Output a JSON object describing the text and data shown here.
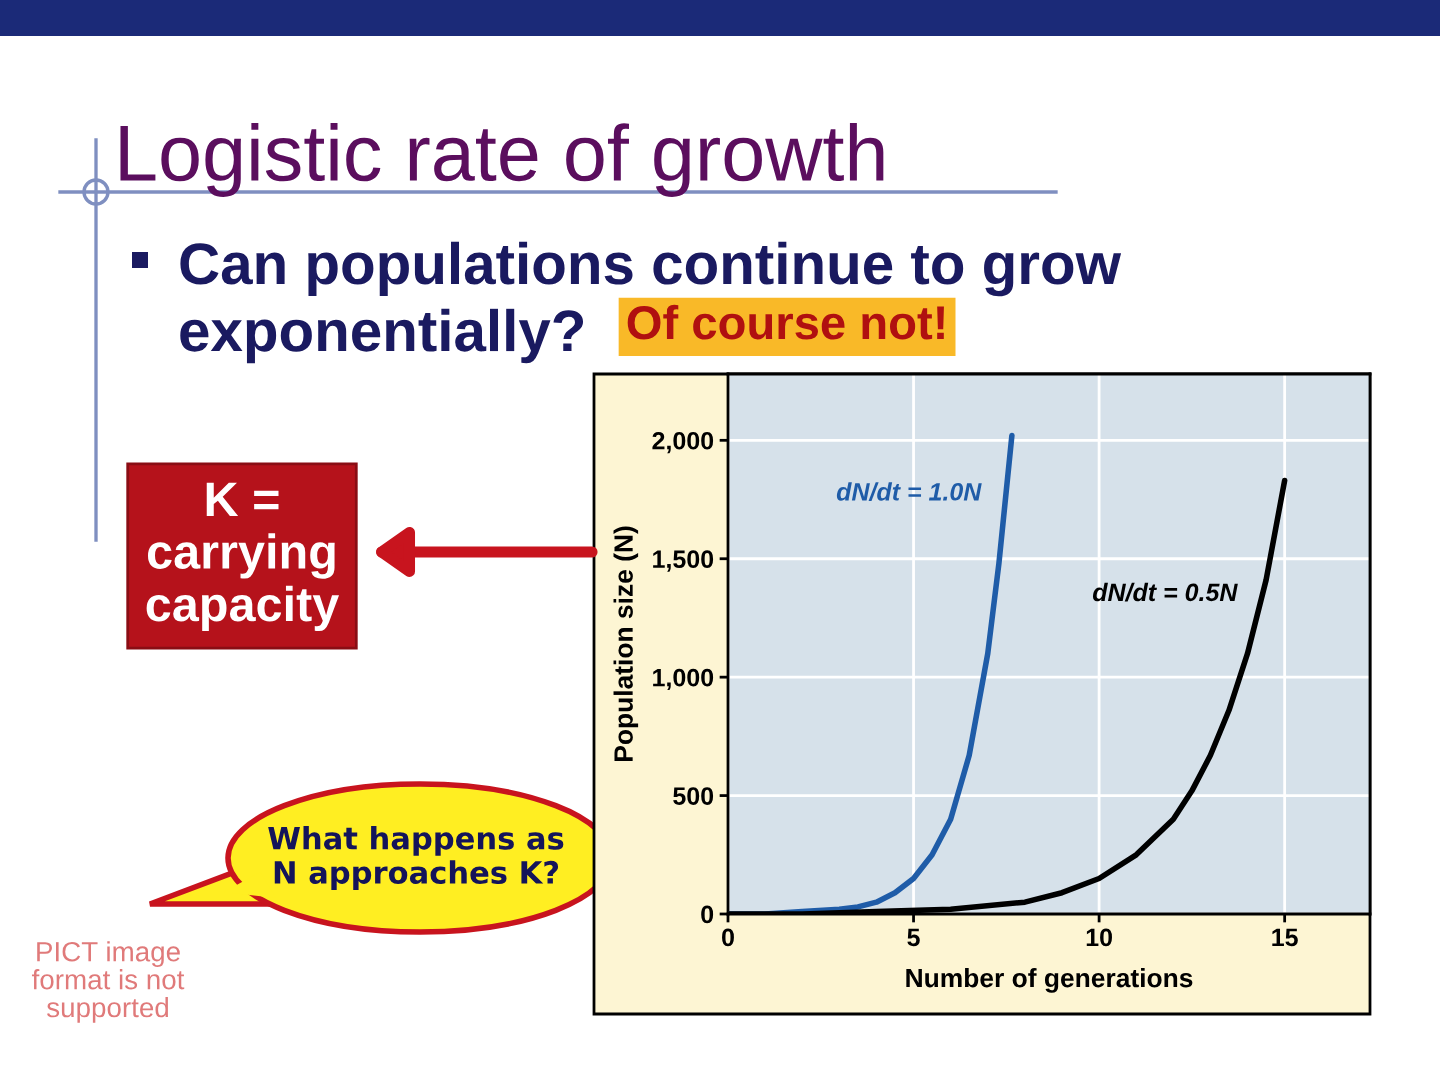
{
  "chart_data": {
    "type": "line",
    "title": "Logistic rate of growth",
    "subtitle": "Can populations continue to grow exponentially? Of course not!",
    "xlabel": "Number of generations",
    "ylabel": "Population size (N)",
    "series": [
      {
        "name": "dN/dt = 1.0N",
        "color": "#1f5ca8",
        "x": [
          0,
          1,
          2,
          3,
          3.5,
          4,
          4.5,
          5,
          5.5,
          6,
          6.5,
          7,
          7.3,
          7.65
        ],
        "values": [
          0,
          0,
          10,
          20,
          30,
          50,
          90,
          150,
          250,
          400,
          670,
          1100,
          1480,
          2020
        ]
      },
      {
        "name": "dN/dt = 0.5N",
        "color": "#000000",
        "x": [
          0,
          2,
          4,
          6,
          8,
          9,
          10,
          11,
          12,
          12.5,
          13,
          13.5,
          14,
          14.5,
          15
        ],
        "values": [
          0,
          0,
          10,
          20,
          50,
          90,
          150,
          250,
          400,
          520,
          670,
          860,
          1100,
          1410,
          1830
        ]
      }
    ],
    "xlim": [
      0,
      17.3
    ],
    "ylim": [
      0,
      2280
    ],
    "xticks": [
      0,
      5,
      10,
      15
    ],
    "yticks": [
      0,
      500,
      {
        "value": 1000,
        "label": "1,000"
      },
      {
        "value": 1500,
        "label": "1,500"
      },
      {
        "value": 2000,
        "label": "2,000"
      }
    ],
    "grid": true,
    "annotations": [
      "K = carrying capacity",
      "What happens as N approaches K?",
      "PICT image format is not supported"
    ]
  }
}
